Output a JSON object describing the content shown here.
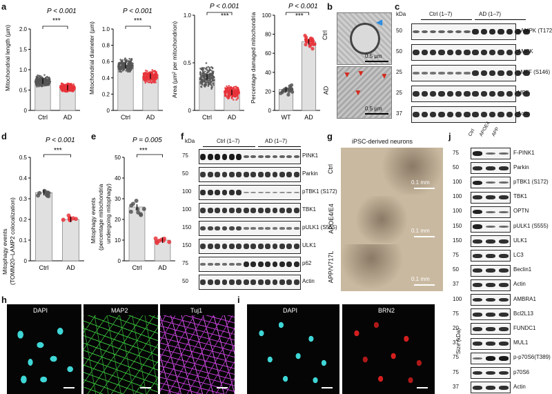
{
  "panels": {
    "a": "a",
    "b": "b",
    "c": "c",
    "d": "d",
    "e": "e",
    "f": "f",
    "g": "g",
    "h": "h",
    "i": "i",
    "j": "j"
  },
  "a_charts": [
    {
      "ylabel": "Mitochondrial length (µm)",
      "pval": "P < 0.001",
      "stars": "***",
      "ticks": [
        "0",
        "0.5",
        "1.0",
        "1.5",
        "2.0"
      ]
    },
    {
      "ylabel": "Mitochondrial diameter (µm)",
      "pval": "P < 0.001",
      "stars": "***",
      "ticks": [
        "0",
        "0.2",
        "0.4",
        "0.6",
        "0.8",
        "1.0"
      ]
    },
    {
      "ylabel": "Area (µm² per mitochondrion)",
      "pval": "P < 0.001",
      "stars": "***",
      "ticks": [
        "0",
        "0.5",
        "1.0"
      ]
    },
    {
      "ylabel": "Percentage damaged mitochondria",
      "pval": "P < 0.001",
      "stars": "***",
      "ticks": [
        "0",
        "20",
        "40",
        "60",
        "80",
        "100"
      ]
    }
  ],
  "chart_data": [
    {
      "type": "bar",
      "categories": [
        "Ctrl",
        "AD"
      ],
      "values": [
        0.72,
        0.56
      ],
      "ylabel": "Mitochondrial length (µm)",
      "ylim": [
        0,
        2.0
      ]
    },
    {
      "type": "bar",
      "categories": [
        "Ctrl",
        "AD"
      ],
      "values": [
        0.55,
        0.42
      ],
      "ylabel": "Mitochondrial diameter (µm)",
      "ylim": [
        0,
        1.0
      ]
    },
    {
      "type": "bar",
      "categories": [
        "Ctrl",
        "AD"
      ],
      "values": [
        0.35,
        0.19
      ],
      "ylabel": "Area (µm² per mitochondrion)",
      "ylim": [
        0,
        1.0
      ]
    },
    {
      "type": "bar",
      "categories": [
        "WT",
        "AD"
      ],
      "values": [
        22,
        72
      ],
      "ylabel": "Percentage damaged mitochondria",
      "ylim": [
        0,
        100
      ]
    },
    {
      "type": "bar",
      "categories": [
        "Ctrl",
        "AD"
      ],
      "values": [
        0.33,
        0.2
      ],
      "ylabel": "Mitophagy events (TOMM20–LAMP2 colocalization)",
      "ylim": [
        0,
        0.5
      ]
    },
    {
      "type": "bar",
      "categories": [
        "Ctrl",
        "AD"
      ],
      "values": [
        26,
        10
      ],
      "ylabel": "Mitophagy events (percentage mitochondria undergoing mitophagy)",
      "ylim": [
        0,
        50
      ]
    }
  ],
  "b": {
    "ctrl": "Ctrl",
    "ad": "AD",
    "scale": "0.5 µm"
  },
  "c": {
    "kda": "kDa",
    "ctrl": "Ctrl (1–7)",
    "ad": "AD (1–7)",
    "markers": [
      "50",
      "50",
      "25",
      "25",
      "37"
    ],
    "labels": [
      "pAMPK (T172)",
      "AMPK",
      "pMFF (S146)",
      "MFF",
      "Actin"
    ]
  },
  "d": {
    "ylabel1": "Mitophagy events",
    "ylabel2": "(TOMM20–LAMP2 colocalization)",
    "pval": "P < 0.001",
    "stars": "***",
    "ticks": [
      "0",
      "0.1",
      "0.2",
      "0.3",
      "0.4",
      "0.5"
    ],
    "cats": [
      "Ctrl",
      "AD"
    ]
  },
  "e": {
    "ylabel1": "Mitophagy events",
    "ylabel2": "(percentage mitochondria",
    "ylabel3": "undergoing mitophagy)",
    "pval": "P = 0.005",
    "stars": "***",
    "ticks": [
      "0",
      "10",
      "20",
      "30",
      "40",
      "50"
    ],
    "cats": [
      "Ctrl",
      "AD"
    ]
  },
  "f": {
    "kda": "kDa",
    "ctrl": "Ctrl (1–7)",
    "ad": "AD (1–7)",
    "markers": [
      "75",
      "50",
      "100",
      "100",
      "150",
      "150",
      "75",
      "50"
    ],
    "labels": [
      "PINK1",
      "Parkin",
      "pTBK1 (S172)",
      "TBK1",
      "pULK1 (S555)",
      "ULK1",
      "p62",
      "Actin"
    ]
  },
  "g": {
    "title": "iPSC-derived neurons",
    "rows": [
      "Ctrl",
      "APOE4/E4",
      "APP/V717L"
    ],
    "scale": "0.1 mm"
  },
  "h": {
    "labels": [
      "DAPI",
      "MAP2",
      "Tuj1"
    ]
  },
  "i": {
    "labels": [
      "DAPI",
      "BRN2"
    ]
  },
  "j": {
    "cols": [
      "Ctrl",
      "APOE4",
      "APP"
    ],
    "size": "Size (kDa)",
    "markers": [
      "75",
      "50",
      "100",
      "100",
      "100",
      "150",
      "150",
      "75",
      "50",
      "37",
      "100",
      "75",
      "20",
      "37",
      "75",
      "75",
      "37"
    ],
    "labels": [
      "F-PINK1",
      "Parkin",
      "pTBK1 (S172)",
      "TBK1",
      "OPTN",
      "pULK1 (S555)",
      "ULK1",
      "LC3",
      "Beclin1",
      "Actin",
      "AMBRA1",
      "Bcl2L13",
      "FUNDC1",
      "MUL1",
      "p-p70S6(T389)",
      "p70S6",
      "Actin"
    ]
  },
  "colors": {
    "ctrl_dot": "#555555",
    "ad_dot": "#e8323a",
    "bar": "#e0e0e0",
    "dapi": "#3fd6d6",
    "map2": "#37c03a",
    "tuj1": "#c23ad6",
    "brn2": "#d41e1e"
  }
}
